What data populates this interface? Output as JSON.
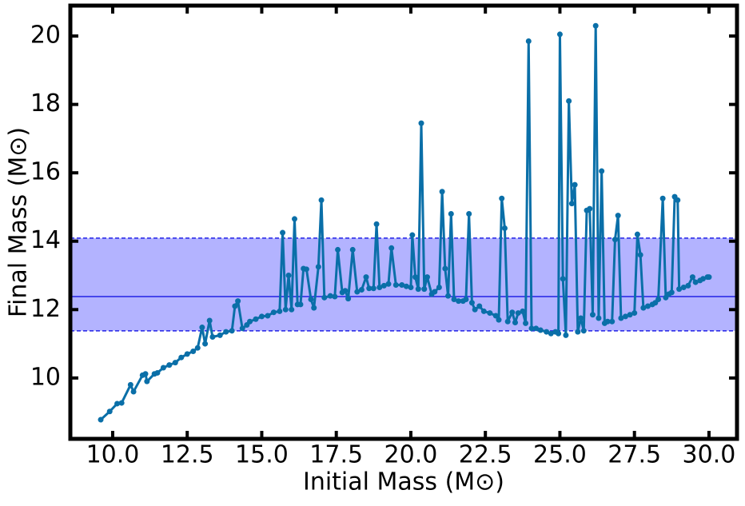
{
  "chart_data": {
    "type": "line",
    "xlabel": "Initial Mass (M⊙)",
    "ylabel": "Final Mass (M⊙)",
    "xlim": [
      8.58,
      30.94
    ],
    "ylim": [
      8.22,
      20.89
    ],
    "xticks": [
      {
        "value": 10,
        "label": "10.0"
      },
      {
        "value": 12.5,
        "label": "12.5"
      },
      {
        "value": 15,
        "label": "15.0"
      },
      {
        "value": 17.5,
        "label": "17.5"
      },
      {
        "value": 20,
        "label": "20.0"
      },
      {
        "value": 22.5,
        "label": "22.5"
      },
      {
        "value": 25,
        "label": "25.0"
      },
      {
        "value": 27.5,
        "label": "27.5"
      },
      {
        "value": 30,
        "label": "30.0"
      }
    ],
    "yticks": [
      10,
      12,
      14,
      16,
      18,
      20
    ],
    "band": {
      "lower": 11.38,
      "upper": 14.09,
      "center": 12.38,
      "color": "#b3b3ff",
      "line_color": "#2323e6"
    },
    "x": [
      9.6,
      9.9,
      10.15,
      10.3,
      10.6,
      10.7,
      11.0,
      11.1,
      11.15,
      11.4,
      11.5,
      11.7,
      11.9,
      12.1,
      12.3,
      12.5,
      12.7,
      12.85,
      13.0,
      13.1,
      13.25,
      13.35,
      13.6,
      13.8,
      14.0,
      14.1,
      14.2,
      14.35,
      14.5,
      14.6,
      14.8,
      15.0,
      15.2,
      15.4,
      15.6,
      15.7,
      15.8,
      15.9,
      16.0,
      16.1,
      16.2,
      16.3,
      16.4,
      16.5,
      16.65,
      16.75,
      16.9,
      17.0,
      17.1,
      17.3,
      17.45,
      17.55,
      17.7,
      17.8,
      17.9,
      18.05,
      18.2,
      18.35,
      18.5,
      18.6,
      18.75,
      18.85,
      18.95,
      19.1,
      19.25,
      19.35,
      19.5,
      19.7,
      19.85,
      20.0,
      20.05,
      20.15,
      20.25,
      20.35,
      20.45,
      20.55,
      20.7,
      20.8,
      20.95,
      21.05,
      21.15,
      21.25,
      21.35,
      21.45,
      21.6,
      21.75,
      21.85,
      21.95,
      22.05,
      22.15,
      22.3,
      22.45,
      22.65,
      22.85,
      22.95,
      23.05,
      23.15,
      23.25,
      23.4,
      23.5,
      23.6,
      23.75,
      23.85,
      23.95,
      24.05,
      24.2,
      24.35,
      24.55,
      24.7,
      24.85,
      24.95,
      25.0,
      25.1,
      25.2,
      25.3,
      25.4,
      25.5,
      25.6,
      25.7,
      25.8,
      25.9,
      26.0,
      26.1,
      26.2,
      26.3,
      26.4,
      26.5,
      26.6,
      26.75,
      26.85,
      26.95,
      27.05,
      27.2,
      27.35,
      27.5,
      27.6,
      27.7,
      27.8,
      27.95,
      28.1,
      28.2,
      28.3,
      28.45,
      28.55,
      28.65,
      28.75,
      28.85,
      28.95,
      29.0,
      29.15,
      29.3,
      29.45,
      29.55,
      29.7,
      29.8,
      29.95,
      30.0
    ],
    "series": [
      {
        "color": "#0a6fa8",
        "values": [
          8.78,
          9.02,
          9.25,
          9.27,
          9.8,
          9.6,
          10.08,
          10.12,
          9.9,
          10.12,
          10.15,
          10.3,
          10.38,
          10.45,
          10.6,
          10.7,
          10.78,
          10.88,
          11.48,
          11.0,
          11.68,
          11.2,
          11.25,
          11.35,
          11.38,
          12.1,
          12.25,
          11.45,
          11.55,
          11.65,
          11.72,
          11.8,
          11.82,
          11.92,
          11.95,
          14.25,
          12.0,
          13.0,
          12.0,
          14.65,
          12.15,
          12.15,
          13.2,
          13.18,
          12.3,
          12.05,
          13.25,
          15.2,
          12.35,
          12.4,
          12.38,
          13.75,
          12.5,
          12.55,
          12.32,
          13.75,
          12.52,
          12.58,
          12.95,
          12.62,
          12.62,
          14.5,
          12.65,
          12.7,
          12.75,
          13.8,
          12.72,
          12.72,
          12.68,
          12.65,
          14.18,
          12.95,
          12.6,
          17.45,
          12.6,
          12.95,
          12.45,
          12.52,
          12.65,
          15.45,
          13.2,
          12.4,
          14.8,
          12.3,
          12.25,
          12.25,
          12.3,
          14.8,
          12.2,
          12.0,
          12.1,
          11.95,
          11.9,
          11.82,
          11.7,
          15.25,
          14.38,
          11.65,
          11.92,
          11.62,
          11.9,
          11.95,
          11.6,
          19.85,
          11.45,
          11.45,
          11.4,
          11.35,
          11.3,
          11.35,
          11.3,
          20.05,
          12.9,
          11.25,
          18.1,
          15.1,
          15.65,
          11.35,
          11.75,
          11.38,
          14.9,
          14.95,
          11.85,
          20.3,
          11.75,
          16.05,
          11.6,
          11.65,
          11.65,
          14.05,
          14.75,
          11.75,
          11.8,
          11.85,
          11.9,
          14.2,
          13.6,
          12.05,
          12.1,
          12.15,
          12.2,
          12.3,
          15.25,
          12.35,
          12.45,
          12.5,
          15.3,
          15.2,
          12.6,
          12.65,
          12.7,
          12.95,
          12.8,
          12.85,
          12.9,
          12.95,
          12.95
        ]
      }
    ]
  }
}
